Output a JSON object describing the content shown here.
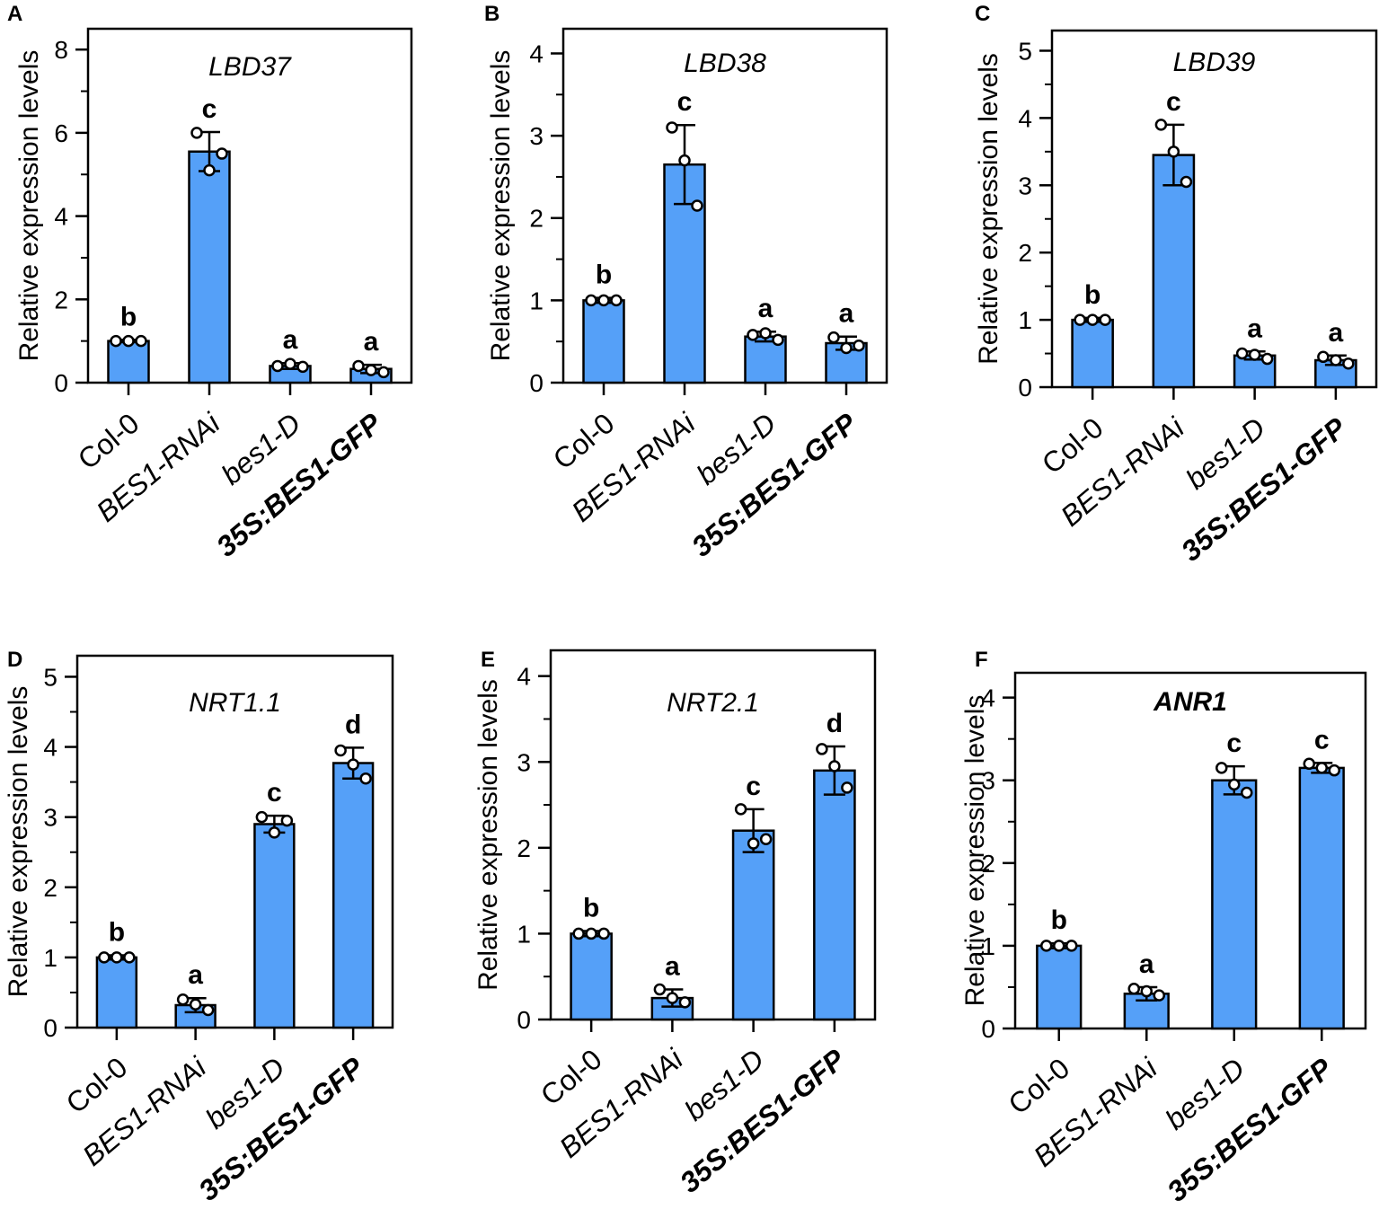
{
  "chart_data": [
    {
      "panel": "A",
      "type": "bar",
      "title": "LBD37",
      "ylabel": "Relative expression levels",
      "xlabel": "",
      "ylim": [
        0,
        8.5
      ],
      "yticks": [
        0,
        2,
        4,
        6,
        8
      ],
      "minor_step": 1,
      "bar_color": "#55a0f8",
      "categories": [
        "Col-0",
        "BES1-RNAi",
        "bes1-D",
        "35S:BES1-GFP"
      ],
      "values": [
        1.0,
        5.55,
        0.4,
        0.33
      ],
      "errors": [
        0.03,
        0.47,
        0.07,
        0.1
      ],
      "points": [
        [
          1.0,
          1.0,
          1.0
        ],
        [
          6.0,
          5.1,
          5.5
        ],
        [
          0.4,
          0.45,
          0.38
        ],
        [
          0.4,
          0.3,
          0.25
        ]
      ],
      "significance": [
        "b",
        "c",
        "a",
        "a"
      ]
    },
    {
      "panel": "B",
      "type": "bar",
      "title": "LBD38",
      "ylabel": "Relative expression levels",
      "xlabel": "",
      "ylim": [
        0,
        4.3
      ],
      "yticks": [
        0,
        1,
        2,
        3,
        4
      ],
      "minor_step": 0.5,
      "bar_color": "#55a0f8",
      "categories": [
        "Col-0",
        "BES1-RNAi",
        "bes1-D",
        "35S:BES1-GFP"
      ],
      "values": [
        1.0,
        2.65,
        0.56,
        0.48
      ],
      "errors": [
        0.03,
        0.48,
        0.06,
        0.08
      ],
      "points": [
        [
          1.0,
          1.0,
          1.0
        ],
        [
          3.1,
          2.7,
          2.15
        ],
        [
          0.58,
          0.6,
          0.52
        ],
        [
          0.55,
          0.42,
          0.45
        ]
      ],
      "significance": [
        "b",
        "c",
        "a",
        "a"
      ]
    },
    {
      "panel": "C",
      "type": "bar",
      "title": "LBD39",
      "ylabel": "Relative expression levels",
      "xlabel": "",
      "ylim": [
        0,
        5.3
      ],
      "yticks": [
        0,
        1,
        2,
        3,
        4,
        5
      ],
      "minor_step": 0.5,
      "bar_color": "#55a0f8",
      "categories": [
        "Col-0",
        "BES1-RNAi",
        "bes1-D",
        "35S:BES1-GFP"
      ],
      "values": [
        1.0,
        3.45,
        0.47,
        0.4
      ],
      "errors": [
        0.03,
        0.45,
        0.06,
        0.07
      ],
      "points": [
        [
          1.0,
          1.0,
          1.0
        ],
        [
          3.9,
          3.5,
          3.05
        ],
        [
          0.5,
          0.48,
          0.42
        ],
        [
          0.45,
          0.4,
          0.35
        ]
      ],
      "significance": [
        "b",
        "c",
        "a",
        "a"
      ]
    },
    {
      "panel": "D",
      "type": "bar",
      "title": "NRT1.1",
      "ylabel": "Relative expression levels",
      "xlabel": "",
      "ylim": [
        0,
        5.3
      ],
      "yticks": [
        0,
        1,
        2,
        3,
        4,
        5
      ],
      "minor_step": 0.5,
      "bar_color": "#55a0f8",
      "categories": [
        "Col-0",
        "BES1-RNAi",
        "bes1-D",
        "35S:BES1-GFP"
      ],
      "values": [
        1.0,
        0.32,
        2.9,
        3.77
      ],
      "errors": [
        0.03,
        0.1,
        0.12,
        0.22
      ],
      "points": [
        [
          1.0,
          1.0,
          1.0
        ],
        [
          0.4,
          0.33,
          0.25
        ],
        [
          3.0,
          2.78,
          2.95
        ],
        [
          3.95,
          3.75,
          3.55
        ]
      ],
      "significance": [
        "b",
        "a",
        "c",
        "d"
      ]
    },
    {
      "panel": "E",
      "type": "bar",
      "title": "NRT2.1",
      "ylabel": "Relative expression levels",
      "xlabel": "",
      "ylim": [
        0,
        4.3
      ],
      "yticks": [
        0,
        1,
        2,
        3,
        4
      ],
      "minor_step": 0.5,
      "bar_color": "#55a0f8",
      "categories": [
        "Col-0",
        "BES1-RNAi",
        "bes1-D",
        "35S:BES1-GFP"
      ],
      "values": [
        1.0,
        0.25,
        2.2,
        2.9
      ],
      "errors": [
        0.03,
        0.1,
        0.25,
        0.28
      ],
      "points": [
        [
          1.0,
          1.0,
          1.0
        ],
        [
          0.35,
          0.25,
          0.2
        ],
        [
          2.45,
          2.05,
          2.1
        ],
        [
          3.15,
          2.95,
          2.7
        ]
      ],
      "significance": [
        "b",
        "a",
        "c",
        "d"
      ]
    },
    {
      "panel": "F",
      "type": "bar",
      "title": "ANR1",
      "ylabel": "Relative expression levels",
      "xlabel": "",
      "ylim": [
        0,
        4.3
      ],
      "yticks": [
        0,
        1,
        2,
        3,
        4
      ],
      "minor_step": 0.5,
      "bar_color": "#55a0f8",
      "categories": [
        "Col-0",
        "BES1-RNAi",
        "bes1-D",
        "35S:BES1-GFP"
      ],
      "values": [
        1.0,
        0.42,
        3.0,
        3.15
      ],
      "errors": [
        0.03,
        0.08,
        0.17,
        0.06
      ],
      "points": [
        [
          1.0,
          1.0,
          1.0
        ],
        [
          0.48,
          0.45,
          0.4
        ],
        [
          3.15,
          2.95,
          2.85
        ],
        [
          3.2,
          3.15,
          3.12
        ]
      ],
      "significance": [
        "b",
        "a",
        "c",
        "c"
      ]
    }
  ]
}
